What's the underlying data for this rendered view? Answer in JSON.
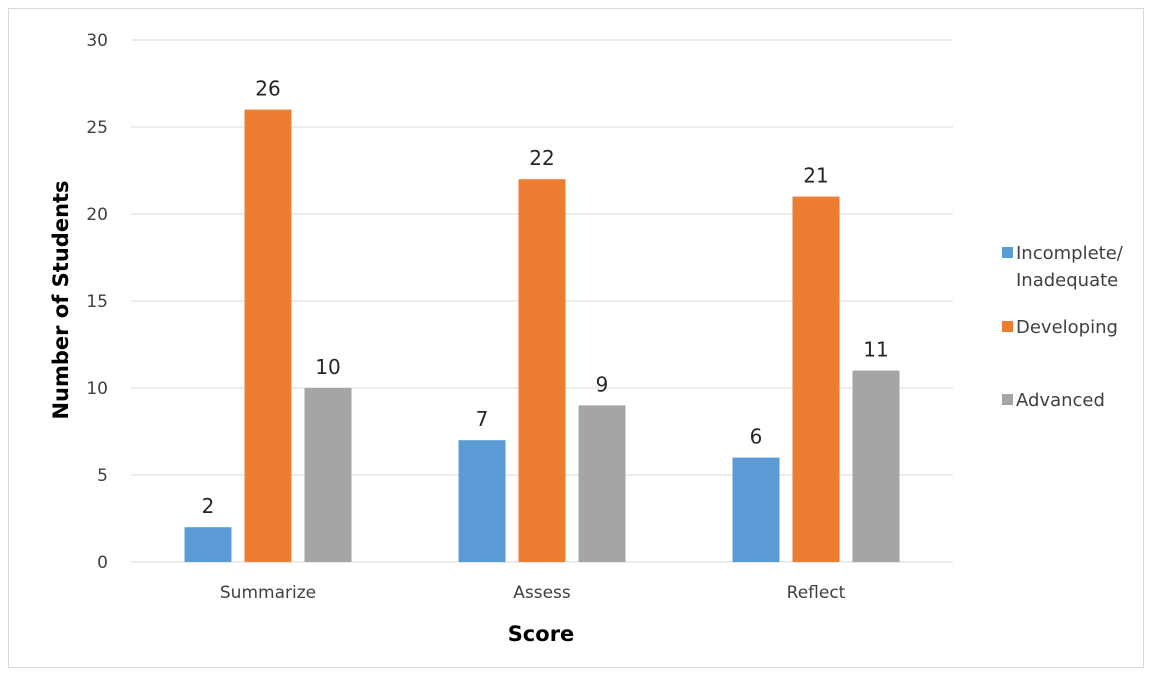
{
  "chart_data": {
    "type": "bar",
    "title": "",
    "xlabel": "Score",
    "ylabel": "Number of Students",
    "categories": [
      "Summarize",
      "Assess",
      "Reflect"
    ],
    "ylim": [
      0,
      30
    ],
    "yticks": [
      0,
      5,
      10,
      15,
      20,
      25,
      30
    ],
    "grid": true,
    "legend_position": "right",
    "series": [
      {
        "name": "Incomplete/ Inadequate",
        "legend_lines": [
          "Incomplete/",
          "Inadequate"
        ],
        "color": "#5b9bd5",
        "values": [
          2,
          7,
          6
        ]
      },
      {
        "name": "Developing",
        "legend_lines": [
          "Developing"
        ],
        "color": "#ed7d31",
        "values": [
          26,
          22,
          21
        ]
      },
      {
        "name": "Advanced",
        "legend_lines": [
          "Advanced"
        ],
        "color": "#a5a5a5",
        "values": [
          10,
          9,
          11
        ]
      }
    ]
  }
}
